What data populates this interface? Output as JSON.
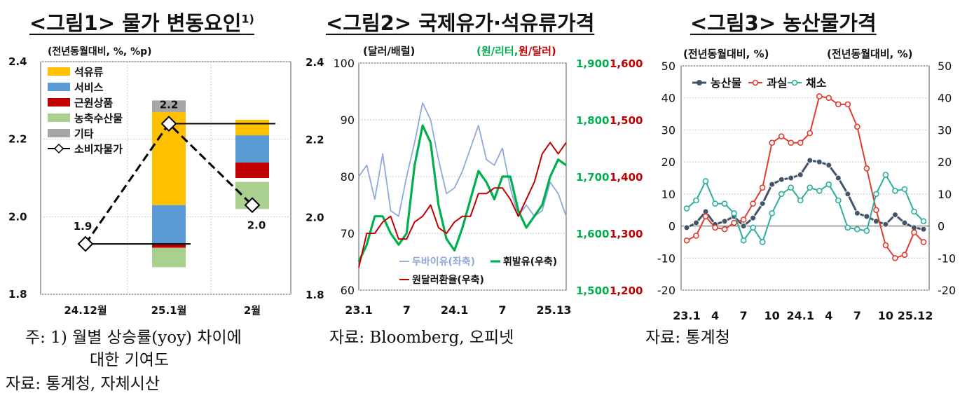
{
  "titles": {
    "fig1": "<그림1> 물가  변동요인",
    "fig1_sup": "1)",
    "fig2": "<그림2> 국제유가·석유류가격",
    "fig3": "<그림3> 농산물가격"
  },
  "notes": {
    "fig1_note_line1": "주: 1) 월별 상승률(yoy) 차이에",
    "fig1_note_line2": "대한 기여도",
    "fig1_source": "자료: 통계청, 자체시산",
    "fig2_source": "자료: Bloomberg, 오피넷",
    "fig3_source": "자료: 통계청"
  },
  "chart_data": [
    {
      "type": "bar",
      "stacked": true,
      "unit_label": "(전년동월대비, %, %p)",
      "categories": [
        "24.12월",
        "25.1월",
        "2월"
      ],
      "ylim": [
        1.8,
        2.4
      ],
      "yticks": [
        "2.4",
        "2.2",
        "2.0",
        "1.8"
      ],
      "baseline_line": [
        1.9,
        2.24,
        2.0
      ],
      "series": [
        {
          "name": "석유류",
          "color": "#FFC000",
          "segments": [
            null,
            [
              2.03,
              2.27
            ],
            [
              2.21,
              2.25
            ]
          ]
        },
        {
          "name": "서비스",
          "color": "#5B9BD5",
          "segments": [
            null,
            [
              1.93,
              2.03
            ],
            [
              2.14,
              2.21
            ]
          ]
        },
        {
          "name": "근원상품",
          "color": "#C00000",
          "segments": [
            null,
            [
              1.92,
              1.93
            ],
            [
              2.1,
              2.14
            ]
          ]
        },
        {
          "name": "농축수산물",
          "color": "#A9D08E",
          "segments": [
            null,
            [
              1.87,
              1.92
            ],
            [
              2.02,
              2.09
            ]
          ]
        },
        {
          "name": "기타",
          "color": "#A6A6A6",
          "segments": [
            null,
            [
              2.27,
              2.3
            ],
            null
          ]
        },
        {
          "name": "소비자물가",
          "type": "line",
          "color": "#000000",
          "values": [
            1.9,
            2.2,
            2.0
          ],
          "plot_values": [
            1.93,
            2.24,
            2.03
          ],
          "labels": [
            "1.9",
            "2.2",
            "2.0"
          ]
        }
      ]
    },
    {
      "type": "line",
      "left_unit": "(달러/배럴)",
      "right_unit_green": "(원/리터,",
      "right_unit_red": "원/달러)",
      "ylim_left": [
        60,
        100
      ],
      "yticks_left": [
        "100",
        "90",
        "80",
        "70",
        "60"
      ],
      "ylim_right_green": [
        1500,
        1900
      ],
      "yticks_right_green": [
        "1,900",
        "1,800",
        "1,700",
        "1,600",
        "1,500"
      ],
      "ylim_right_red": [
        1200,
        1600
      ],
      "yticks_right_red": [
        "1,600",
        "1,500",
        "1,400",
        "1,300",
        "1,200"
      ],
      "xticks": [
        "23.1",
        "7",
        "24.1",
        "7",
        "25.1",
        "3"
      ],
      "x_range": [
        "2023-01",
        "2025-03"
      ],
      "series": [
        {
          "name": "두바이유(좌축)",
          "color": "#8EA9DB",
          "axis": "left",
          "x": [
            "2023-01",
            "2023-02",
            "2023-03",
            "2023-04",
            "2023-05",
            "2023-06",
            "2023-07",
            "2023-08",
            "2023-09",
            "2023-10",
            "2023-11",
            "2023-12",
            "2024-01",
            "2024-02",
            "2024-03",
            "2024-04",
            "2024-05",
            "2024-06",
            "2024-07",
            "2024-08",
            "2024-09",
            "2024-10",
            "2024-11",
            "2024-12",
            "2025-01",
            "2025-02",
            "2025-03"
          ],
          "values": [
            80,
            82,
            76,
            84,
            74,
            73,
            80,
            86,
            93,
            90,
            83,
            77,
            78,
            81,
            85,
            89,
            83,
            82,
            85,
            78,
            73,
            75,
            73,
            74,
            79,
            77,
            73
          ]
        },
        {
          "name": "휘발유(우축)",
          "color": "#00B050",
          "axis": "right_green",
          "x": [
            "2023-01",
            "2023-02",
            "2023-03",
            "2023-04",
            "2023-05",
            "2023-06",
            "2023-07",
            "2023-08",
            "2023-09",
            "2023-10",
            "2023-11",
            "2023-12",
            "2024-01",
            "2024-02",
            "2024-03",
            "2024-04",
            "2024-05",
            "2024-06",
            "2024-07",
            "2024-08",
            "2024-09",
            "2024-10",
            "2024-11",
            "2024-12",
            "2025-01",
            "2025-02",
            "2025-03"
          ],
          "values": [
            1550,
            1580,
            1630,
            1630,
            1600,
            1580,
            1600,
            1720,
            1790,
            1760,
            1650,
            1590,
            1570,
            1610,
            1660,
            1710,
            1690,
            1660,
            1700,
            1700,
            1640,
            1610,
            1630,
            1650,
            1700,
            1730,
            1720
          ]
        },
        {
          "name": "원달러환율(우축)",
          "color": "#C00000",
          "axis": "right_red",
          "x": [
            "2023-01",
            "2023-02",
            "2023-03",
            "2023-04",
            "2023-05",
            "2023-06",
            "2023-07",
            "2023-08",
            "2023-09",
            "2023-10",
            "2023-11",
            "2023-12",
            "2024-01",
            "2024-02",
            "2024-03",
            "2024-04",
            "2024-05",
            "2024-06",
            "2024-07",
            "2024-08",
            "2024-09",
            "2024-10",
            "2024-11",
            "2024-12",
            "2025-01",
            "2025-02",
            "2025-03"
          ],
          "values": [
            1240,
            1300,
            1300,
            1320,
            1330,
            1290,
            1290,
            1320,
            1330,
            1350,
            1310,
            1300,
            1320,
            1330,
            1330,
            1370,
            1370,
            1380,
            1380,
            1360,
            1330,
            1360,
            1390,
            1440,
            1460,
            1440,
            1460
          ]
        }
      ]
    },
    {
      "type": "line",
      "unit_left": "(전년동월대비, %)",
      "unit_right": "(전년동월대비, %)",
      "ylim": [
        -20,
        50
      ],
      "yticks": [
        "50",
        "40",
        "30",
        "20",
        "10",
        "0",
        "-10",
        "-20"
      ],
      "xticks": [
        "23.1",
        "4",
        "7",
        "10",
        "24.1",
        "4",
        "7",
        "10",
        "25.1",
        "2"
      ],
      "x": [
        "2023-01",
        "2023-02",
        "2023-03",
        "2023-04",
        "2023-05",
        "2023-06",
        "2023-07",
        "2023-08",
        "2023-09",
        "2023-10",
        "2023-11",
        "2023-12",
        "2024-01",
        "2024-02",
        "2024-03",
        "2024-04",
        "2024-05",
        "2024-06",
        "2024-07",
        "2024-08",
        "2024-09",
        "2024-10",
        "2024-11",
        "2024-12",
        "2025-01",
        "2025-02"
      ],
      "series": [
        {
          "name": "농산물",
          "color": "#44546A",
          "values": [
            -0.5,
            1,
            4.5,
            0.5,
            1.5,
            3,
            0,
            2.5,
            7,
            13,
            14.5,
            15,
            16,
            20.5,
            20,
            19,
            15,
            10,
            4,
            3,
            1.5,
            0.5,
            3.5,
            1,
            -0.5,
            -1
          ]
        },
        {
          "name": "과실",
          "color": "#E03C31",
          "values": [
            -4.5,
            -3,
            3,
            -0.5,
            -1,
            1,
            2,
            7,
            12,
            26,
            28,
            26,
            26,
            29,
            40.5,
            40,
            38,
            38,
            31,
            18,
            5,
            -6,
            -10,
            -9,
            -2,
            -5
          ]
        },
        {
          "name": "채소",
          "color": "#2BAF9A",
          "values": [
            5.5,
            8,
            14,
            7,
            7,
            4,
            -4.5,
            -0.5,
            -5,
            4,
            10,
            12,
            8,
            12,
            11,
            13,
            8,
            -0.5,
            -1,
            -1.5,
            10,
            16,
            11,
            11.5,
            4.5,
            1.5
          ]
        }
      ]
    }
  ]
}
